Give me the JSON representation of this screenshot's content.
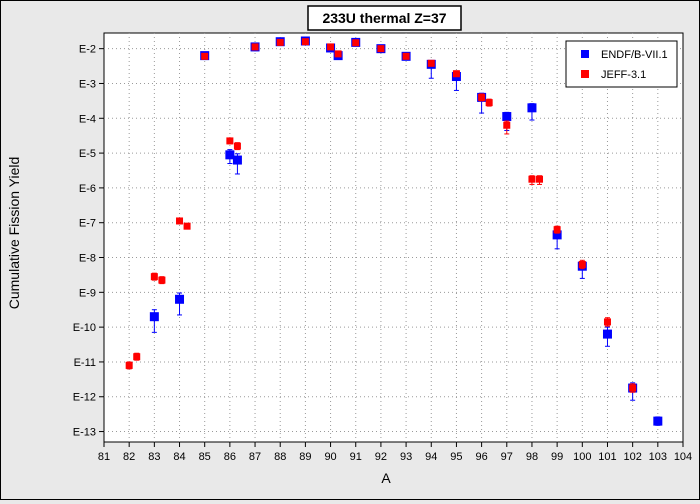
{
  "chart_data": {
    "type": "scatter",
    "title": "233U thermal Z=37",
    "xlabel": "A",
    "ylabel": "Cumulative Fission Yield",
    "xlim": [
      81,
      104
    ],
    "ylim_exponent": [
      -13.3,
      -1.55
    ],
    "y_scale": "log",
    "grid": true,
    "legend_position": "top-right",
    "x_ticks": [
      "81",
      "82",
      "83",
      "84",
      "85",
      "86",
      "87",
      "88",
      "89",
      "90",
      "91",
      "92",
      "93",
      "94",
      "95",
      "96",
      "97",
      "98",
      "99",
      "100",
      "101",
      "102",
      "103",
      "104"
    ],
    "y_ticks": [
      {
        "exp": -2,
        "label": "E-2"
      },
      {
        "exp": -3,
        "label": "E-3"
      },
      {
        "exp": -4,
        "label": "E-4"
      },
      {
        "exp": -5,
        "label": "E-5"
      },
      {
        "exp": -6,
        "label": "E-6"
      },
      {
        "exp": -7,
        "label": "E-7"
      },
      {
        "exp": -8,
        "label": "E-8"
      },
      {
        "exp": -9,
        "label": "E-9"
      },
      {
        "exp": -10,
        "label": "E-10"
      },
      {
        "exp": -11,
        "label": "E-11"
      },
      {
        "exp": -12,
        "label": "E-12"
      },
      {
        "exp": -13,
        "label": "E-13"
      }
    ],
    "series": [
      {
        "name": "ENDF/B-VII.1",
        "color": "#0000ff",
        "marker": "square",
        "points": [
          {
            "x": 83.0,
            "y": -9.7,
            "err_up": 0.2,
            "err_down": 0.45
          },
          {
            "x": 84.0,
            "y": -9.2,
            "err_up": 0.18,
            "err_down": 0.45
          },
          {
            "x": 85.0,
            "y": -2.2,
            "err_up": 0.05,
            "err_down": 0.05
          },
          {
            "x": 86.0,
            "y": -5.05,
            "err_up": 0.15,
            "err_down": 0.25
          },
          {
            "x": 86.3,
            "y": -5.2,
            "err_up": 0.18,
            "err_down": 0.4
          },
          {
            "x": 87.0,
            "y": -1.95,
            "err_up": 0.05,
            "err_down": 0.05
          },
          {
            "x": 88.0,
            "y": -1.8,
            "err_up": 0.05,
            "err_down": 0.05
          },
          {
            "x": 89.0,
            "y": -1.78,
            "err_up": 0.05,
            "err_down": 0.05
          },
          {
            "x": 90.0,
            "y": -1.98,
            "err_up": 0.05,
            "err_down": 0.05
          },
          {
            "x": 90.3,
            "y": -2.2,
            "err_up": 0.05,
            "err_down": 0.05
          },
          {
            "x": 91.0,
            "y": -1.82,
            "err_up": 0.05,
            "err_down": 0.05
          },
          {
            "x": 92.0,
            "y": -2.0,
            "err_up": 0.05,
            "err_down": 0.05
          },
          {
            "x": 93.0,
            "y": -2.22,
            "err_up": 0.05,
            "err_down": 0.05
          },
          {
            "x": 94.0,
            "y": -2.45,
            "err_up": 0.1,
            "err_down": 0.4
          },
          {
            "x": 95.0,
            "y": -2.8,
            "err_up": 0.1,
            "err_down": 0.4
          },
          {
            "x": 96.0,
            "y": -3.4,
            "err_up": 0.12,
            "err_down": 0.45
          },
          {
            "x": 97.0,
            "y": -3.95,
            "err_up": 0.12,
            "err_down": 0.4
          },
          {
            "x": 98.0,
            "y": -3.7,
            "err_up": 0.12,
            "err_down": 0.35
          },
          {
            "x": 99.0,
            "y": -7.35,
            "err_up": 0.12,
            "err_down": 0.4
          },
          {
            "x": 100.0,
            "y": -8.25,
            "err_up": 0.12,
            "err_down": 0.35
          },
          {
            "x": 101.0,
            "y": -10.2,
            "err_up": 0.2,
            "err_down": 0.35
          },
          {
            "x": 102.0,
            "y": -11.75,
            "err_up": 0.15,
            "err_down": 0.35
          },
          {
            "x": 103.0,
            "y": -12.7,
            "err_up": 0.12,
            "err_down": 0.12
          }
        ]
      },
      {
        "name": "JEFF-3.1",
        "color": "#ff0000",
        "marker": "square",
        "points": [
          {
            "x": 82.0,
            "y": -11.1,
            "err_up": 0.1,
            "err_down": 0.1
          },
          {
            "x": 82.3,
            "y": -10.85,
            "err_up": 0.1,
            "err_down": 0.1
          },
          {
            "x": 83.0,
            "y": -8.55,
            "err_up": 0.1,
            "err_down": 0.1
          },
          {
            "x": 83.3,
            "y": -8.65,
            "err_up": 0.1,
            "err_down": 0.1
          },
          {
            "x": 84.0,
            "y": -6.95,
            "err_up": 0.08,
            "err_down": 0.08
          },
          {
            "x": 84.3,
            "y": -7.1,
            "err_up": 0.08,
            "err_down": 0.08
          },
          {
            "x": 85.0,
            "y": -2.22,
            "err_up": 0.05,
            "err_down": 0.05
          },
          {
            "x": 86.0,
            "y": -4.65,
            "err_up": 0.08,
            "err_down": 0.08
          },
          {
            "x": 86.3,
            "y": -4.8,
            "err_up": 0.1,
            "err_down": 0.1
          },
          {
            "x": 87.0,
            "y": -1.95,
            "err_up": 0.05,
            "err_down": 0.05
          },
          {
            "x": 88.0,
            "y": -1.82,
            "err_up": 0.05,
            "err_down": 0.05
          },
          {
            "x": 89.0,
            "y": -1.8,
            "err_up": 0.05,
            "err_down": 0.05
          },
          {
            "x": 90.0,
            "y": -1.95,
            "err_up": 0.05,
            "err_down": 0.05
          },
          {
            "x": 90.3,
            "y": -2.15,
            "err_up": 0.05,
            "err_down": 0.05
          },
          {
            "x": 91.0,
            "y": -1.83,
            "err_up": 0.05,
            "err_down": 0.05
          },
          {
            "x": 92.0,
            "y": -2.0,
            "err_up": 0.05,
            "err_down": 0.05
          },
          {
            "x": 93.0,
            "y": -2.22,
            "err_up": 0.05,
            "err_down": 0.05
          },
          {
            "x": 94.0,
            "y": -2.42,
            "err_up": 0.08,
            "err_down": 0.08
          },
          {
            "x": 95.0,
            "y": -2.72,
            "err_up": 0.08,
            "err_down": 0.08
          },
          {
            "x": 96.0,
            "y": -3.4,
            "err_up": 0.1,
            "err_down": 0.1
          },
          {
            "x": 96.3,
            "y": -3.55,
            "err_up": 0.1,
            "err_down": 0.1
          },
          {
            "x": 97.0,
            "y": -4.2,
            "err_up": 0.12,
            "err_down": 0.25
          },
          {
            "x": 98.0,
            "y": -5.75,
            "err_up": 0.1,
            "err_down": 0.15
          },
          {
            "x": 98.3,
            "y": -5.75,
            "err_up": 0.1,
            "err_down": 0.15
          },
          {
            "x": 99.0,
            "y": -7.2,
            "err_up": 0.1,
            "err_down": 0.1
          },
          {
            "x": 100.0,
            "y": -8.2,
            "err_up": 0.12,
            "err_down": 0.12
          },
          {
            "x": 101.0,
            "y": -9.85,
            "err_up": 0.12,
            "err_down": 0.12
          },
          {
            "x": 102.0,
            "y": -11.75,
            "err_up": 0.12,
            "err_down": 0.12
          }
        ]
      }
    ]
  }
}
